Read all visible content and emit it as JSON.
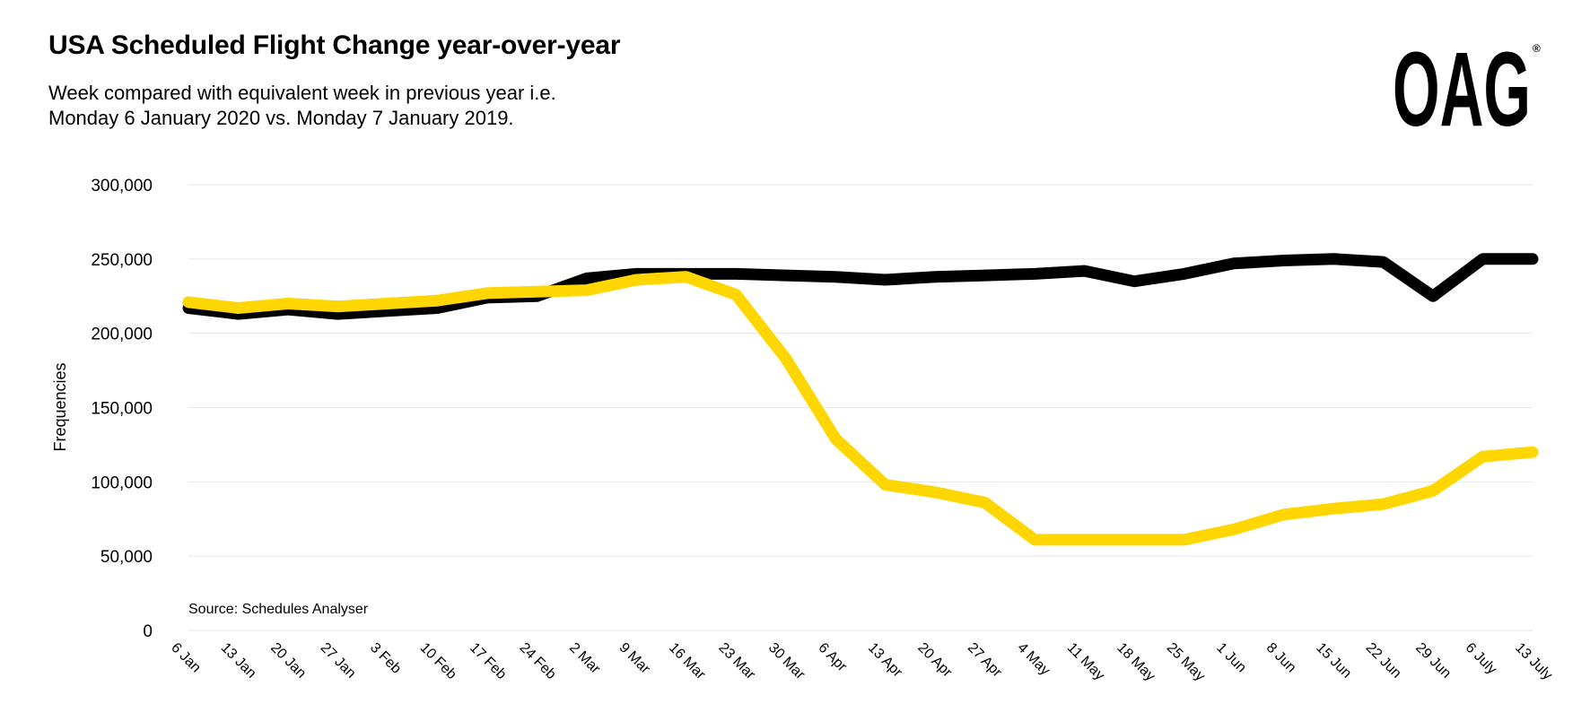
{
  "header": {
    "title": "USA Scheduled Flight Change year-over-year",
    "subtitle_line1": "Week compared with equivalent week in previous year i.e.",
    "subtitle_line2": "Monday 6 January 2020 vs. Monday 7 January 2019."
  },
  "logo": {
    "text": "OAG",
    "mark": "®"
  },
  "source": "Source: Schedules Analyser",
  "colors": {
    "series_2019": "#000000",
    "series_2020": "#FFD600",
    "grid": "#e6e6e6"
  },
  "chart_data": {
    "type": "line",
    "title": "USA Scheduled Flight Change year-over-year",
    "xlabel": "",
    "ylabel": "Frequencies",
    "ylim": [
      0,
      300000
    ],
    "yticks": [
      0,
      50000,
      100000,
      150000,
      200000,
      250000,
      300000
    ],
    "ytick_labels": [
      "0",
      "50,000",
      "100,000",
      "150,000",
      "200,000",
      "250,000",
      "300,000"
    ],
    "grid": true,
    "legend": "none",
    "categories": [
      "6 Jan",
      "13 Jan",
      "20 Jan",
      "27 Jan",
      "3 Feb",
      "10 Feb",
      "17 Feb",
      "24 Feb",
      "2 Mar",
      "9 Mar",
      "16 Mar",
      "23 Mar",
      "30 Mar",
      "6 Apr",
      "13 Apr",
      "20 Apr",
      "27 Apr",
      "4 May",
      "11 May",
      "18 May",
      "25 May",
      "1 Jun",
      "8 Jun",
      "15 Jun",
      "22 Jun",
      "29 Jun",
      "6 July",
      "13 July"
    ],
    "series": [
      {
        "color": "#000000",
        "values": [
          217000,
          213000,
          216000,
          213000,
          215000,
          217000,
          224000,
          225000,
          237000,
          240000,
          240000,
          240000,
          239000,
          238000,
          236000,
          238000,
          239000,
          240000,
          242000,
          235000,
          240000,
          247000,
          249000,
          250000,
          248000,
          225000,
          250000,
          250000
        ]
      },
      {
        "color": "#FFD600",
        "values": [
          221000,
          217000,
          220000,
          218000,
          220000,
          222000,
          227000,
          228000,
          229000,
          236000,
          238000,
          226000,
          183000,
          129000,
          98000,
          93000,
          86000,
          61000,
          61000,
          61000,
          61000,
          68000,
          78000,
          82000,
          85000,
          94000,
          117000,
          120000
        ]
      }
    ]
  }
}
